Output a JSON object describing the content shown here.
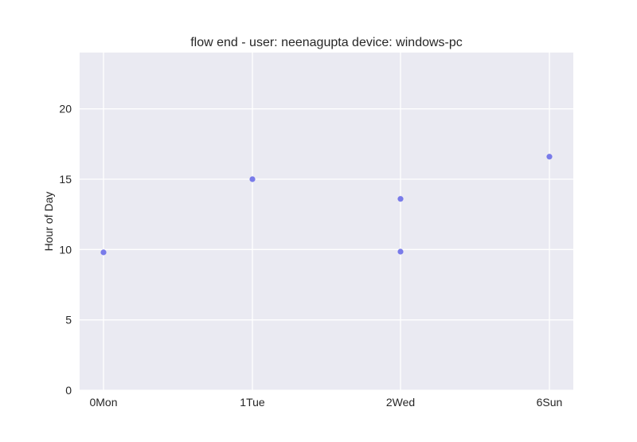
{
  "chart_data": {
    "type": "scatter",
    "title": "flow end - user: neenagupta device: windows-pc",
    "xlabel": "",
    "ylabel": "Hour of Day",
    "x_categories": [
      "0Mon",
      "1Tue",
      "2Wed",
      "6Sun"
    ],
    "ylim": [
      0,
      24
    ],
    "y_ticks": [
      0,
      5,
      10,
      15,
      20
    ],
    "grid": true,
    "points": [
      {
        "x": "0Mon",
        "y": 9.8
      },
      {
        "x": "1Tue",
        "y": 15.0
      },
      {
        "x": "2Wed",
        "y": 13.6
      },
      {
        "x": "2Wed",
        "y": 9.85
      },
      {
        "x": "6Sun",
        "y": 16.6
      }
    ],
    "colors": {
      "background": "#eaeaf2",
      "grid": "#ffffff",
      "point": "#6b6ee8"
    }
  }
}
